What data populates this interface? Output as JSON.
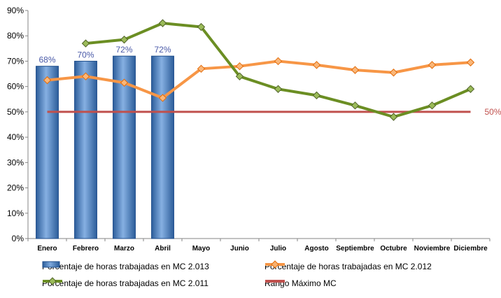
{
  "chart_data": {
    "type": "bar+line",
    "categories": [
      "Enero",
      "Febrero",
      "Marzo",
      "Abril",
      "Mayo",
      "Junio",
      "Julio",
      "Agosto",
      "Septiembre",
      "Octubre",
      "Noviembre",
      "Diciembre"
    ],
    "ylim": [
      0,
      90
    ],
    "yticks": [
      "0%",
      "10%",
      "20%",
      "30%",
      "40%",
      "50%",
      "60%",
      "70%",
      "80%",
      "90%"
    ],
    "grid": false,
    "legend_position": "bottom",
    "bars": {
      "name": "Porcentaje de horas trabajadas en MC 2.013",
      "color": "#4f81bd",
      "values": [
        68,
        70,
        72,
        72,
        null,
        null,
        null,
        null,
        null,
        null,
        null,
        null
      ],
      "labels": [
        "68%",
        "70%",
        "72%",
        "72%"
      ]
    },
    "series": [
      {
        "name": "Porcentaje de horas trabajadas en MC 2.012",
        "color": "#f79646",
        "marker": "diamond",
        "values": [
          62.5,
          64,
          61.5,
          55.5,
          67,
          68,
          70,
          68.5,
          66.5,
          65.5,
          68.5,
          69.5
        ]
      },
      {
        "name": "Porcentaje de horas trabajadas en MC 2.011",
        "color": "#6b8e23",
        "marker": "diamond",
        "values": [
          null,
          77,
          78.5,
          85,
          83.5,
          64,
          59,
          56.5,
          52.5,
          48,
          52.5,
          59
        ]
      },
      {
        "name": "Rango Máximo MC",
        "color": "#c0504d",
        "marker": "none",
        "values": [
          50,
          50,
          50,
          50,
          50,
          50,
          50,
          50,
          50,
          50,
          50,
          50
        ],
        "end_label": "50%"
      }
    ]
  },
  "legend": {
    "bar_2013": "Porcentaje de horas trabajadas en MC 2.013",
    "line_2012": "Porcentaje de horas trabajadas en MC 2.012",
    "line_2011": "Porcentaje de horas trabajadas en MC 2.011",
    "line_max": "Rango Máximo MC"
  }
}
